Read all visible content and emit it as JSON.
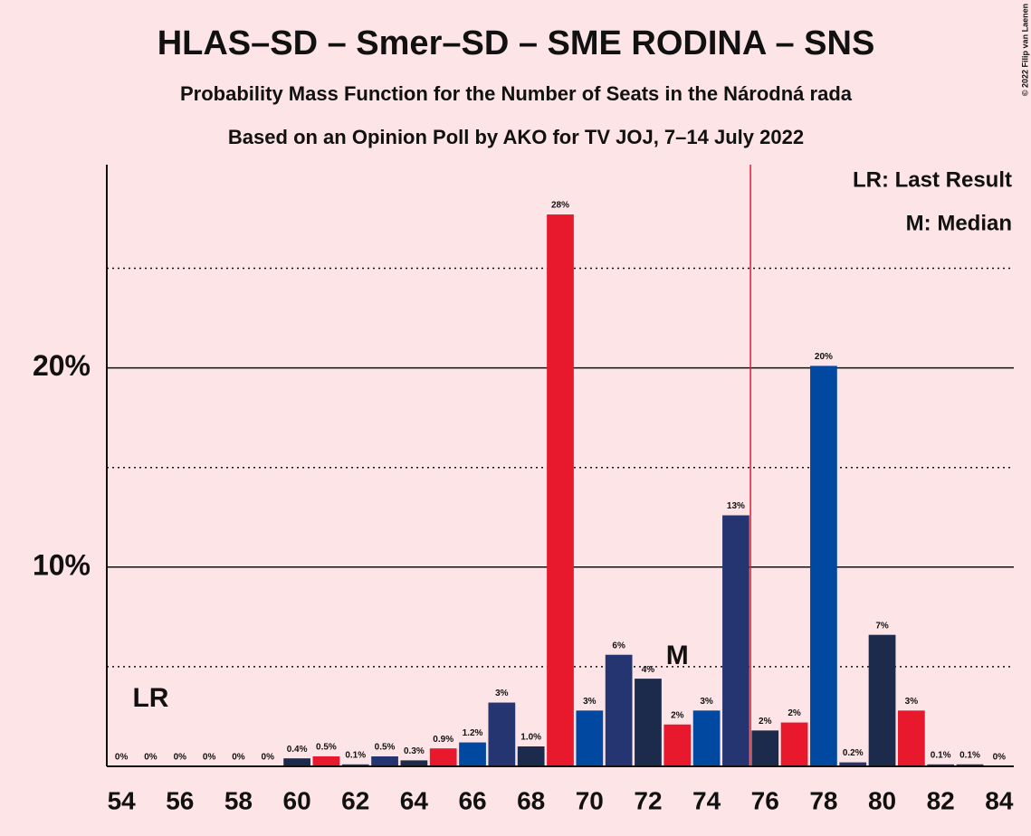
{
  "chart_data": {
    "type": "bar",
    "title": "HLAS–SD – Smer–SD – SME RODINA – SNS",
    "subtitle": "Probability Mass Function for the Number of Seats in the Národná rada",
    "subtitle2": "Based on an Opinion Poll by AKO for TV JOJ, 7–14 July 2022",
    "copyright": "© 2022 Filip van Laenen",
    "x": [
      54,
      55,
      56,
      57,
      58,
      59,
      60,
      61,
      62,
      63,
      64,
      65,
      66,
      67,
      68,
      69,
      70,
      71,
      72,
      73,
      74,
      75,
      76,
      77,
      78,
      79,
      80,
      81,
      82,
      83,
      84
    ],
    "values": [
      0,
      0,
      0,
      0,
      0,
      0,
      0.4,
      0.5,
      0.1,
      0.5,
      0.3,
      0.9,
      1.2,
      3.2,
      1.0,
      27.7,
      2.8,
      5.6,
      4.4,
      2.1,
      2.8,
      12.6,
      1.8,
      2.2,
      20.1,
      0.2,
      6.6,
      2.8,
      0.1,
      0.1,
      0
    ],
    "value_labels": [
      "0%",
      "0%",
      "0%",
      "0%",
      "0%",
      "0%",
      "0.4%",
      "0.5%",
      "0.1%",
      "0.5%",
      "0.3%",
      "0.9%",
      "1.2%",
      "3%",
      "1.0%",
      "28%",
      "3%",
      "6%",
      "4%",
      "2%",
      "3%",
      "13%",
      "2%",
      "2%",
      "20%",
      "0.2%",
      "7%",
      "3%",
      "0.1%",
      "0.1%",
      "0%"
    ],
    "colors": [
      "#1c2b4b",
      "#e8192c",
      "#0048a0",
      "#253571"
    ],
    "xlim": [
      53.5,
      84.5
    ],
    "xticks": [
      54,
      56,
      58,
      60,
      62,
      64,
      66,
      68,
      70,
      72,
      74,
      76,
      78,
      80,
      82,
      84
    ],
    "ylim": [
      0,
      30.2
    ],
    "yticks": [
      {
        "value": 10,
        "label": "10%"
      },
      {
        "value": 20,
        "label": "20%"
      }
    ],
    "minor_yticks": [
      5,
      15,
      25
    ],
    "majority_line": 75.5,
    "last_result": {
      "label": "LR",
      "x": 55
    },
    "median": {
      "label": "M",
      "x": 73
    },
    "legend": [
      "LR: Last Result",
      "M: Median"
    ]
  }
}
